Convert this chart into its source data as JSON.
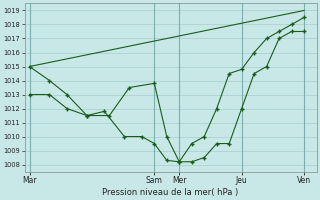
{
  "xlabel": "Pression niveau de la mer( hPa )",
  "ylim": [
    1007.5,
    1019.5
  ],
  "yticks": [
    1008,
    1009,
    1010,
    1011,
    1012,
    1013,
    1014,
    1015,
    1016,
    1017,
    1018,
    1019
  ],
  "xtick_labels": [
    "Mar",
    "Sam",
    "Mer",
    "Jeu",
    "Ven"
  ],
  "xtick_positions": [
    0,
    5,
    6,
    8.5,
    11
  ],
  "xlim": [
    -0.2,
    11.5
  ],
  "background_color": "#c8e8e8",
  "grid_color": "#a8cccc",
  "line_color": "#1a5c1a",
  "line1_x": [
    0,
    11
  ],
  "line1_y": [
    1015,
    1019
  ],
  "line2_x": [
    0,
    0.8,
    1.5,
    2.3,
    3.2,
    4.0,
    5.0,
    5.5,
    6.0,
    6.5,
    7.0,
    7.5,
    8.0,
    8.5,
    9.0,
    9.5,
    10.0,
    10.5,
    11.0
  ],
  "line2_y": [
    1015,
    1014,
    1013,
    1011.5,
    1011.5,
    1013.5,
    1013.8,
    1010.0,
    1008.2,
    1008.2,
    1008.5,
    1009.5,
    1009.5,
    1012.0,
    1014.5,
    1015.0,
    1017.0,
    1017.5,
    1017.5
  ],
  "line3_x": [
    0,
    0.8,
    1.5,
    2.3,
    3.0,
    3.8,
    4.5,
    5.0,
    5.5,
    6.0,
    6.5,
    7.0,
    7.5,
    8.0,
    8.5,
    9.0,
    9.5,
    10.0,
    10.5,
    11.0
  ],
  "line3_y": [
    1013,
    1013,
    1012,
    1011.5,
    1011.8,
    1010.0,
    1010.0,
    1009.5,
    1008.3,
    1008.2,
    1009.5,
    1010.0,
    1012.0,
    1014.5,
    1014.8,
    1016.0,
    1017.0,
    1017.5,
    1018.0,
    1018.5
  ]
}
